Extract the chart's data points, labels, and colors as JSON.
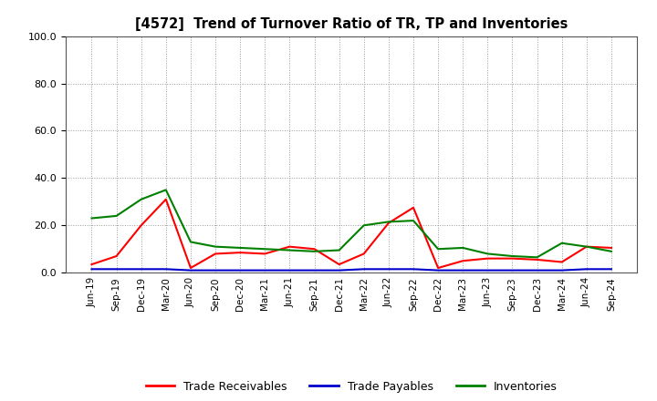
{
  "title": "[4572]  Trend of Turnover Ratio of TR, TP and Inventories",
  "ylim": [
    0.0,
    100.0
  ],
  "yticks": [
    0.0,
    20.0,
    40.0,
    60.0,
    80.0,
    100.0
  ],
  "x_labels": [
    "Jun-19",
    "Sep-19",
    "Dec-19",
    "Mar-20",
    "Jun-20",
    "Sep-20",
    "Dec-20",
    "Mar-21",
    "Jun-21",
    "Sep-21",
    "Dec-21",
    "Mar-22",
    "Jun-22",
    "Sep-22",
    "Dec-22",
    "Mar-23",
    "Jun-23",
    "Sep-23",
    "Dec-23",
    "Mar-24",
    "Jun-24",
    "Sep-24"
  ],
  "trade_receivables": [
    3.5,
    7.0,
    20.0,
    31.0,
    2.0,
    8.0,
    8.5,
    8.0,
    11.0,
    10.0,
    3.5,
    8.0,
    21.0,
    27.5,
    2.0,
    5.0,
    6.0,
    6.0,
    5.5,
    4.5,
    11.0,
    10.5
  ],
  "trade_payables": [
    1.5,
    1.5,
    1.5,
    1.5,
    1.0,
    1.0,
    1.0,
    1.0,
    1.0,
    1.0,
    1.0,
    1.5,
    1.5,
    1.5,
    1.0,
    1.0,
    1.0,
    1.0,
    1.0,
    1.0,
    1.5,
    1.5
  ],
  "inventories": [
    23.0,
    24.0,
    31.0,
    35.0,
    13.0,
    11.0,
    10.5,
    10.0,
    9.5,
    9.0,
    9.5,
    20.0,
    21.5,
    22.0,
    10.0,
    10.5,
    8.0,
    7.0,
    6.5,
    12.5,
    11.0,
    9.0
  ],
  "color_tr": "#FF0000",
  "color_tp": "#0000CC",
  "color_inv": "#008000",
  "legend_labels": [
    "Trade Receivables",
    "Trade Payables",
    "Inventories"
  ],
  "background_color": "#FFFFFF",
  "grid_color": "#999999"
}
